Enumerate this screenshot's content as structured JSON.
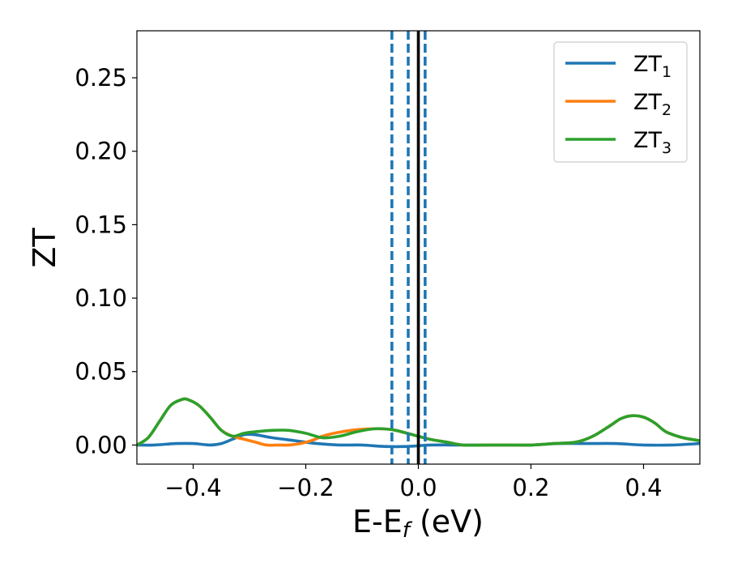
{
  "chart_data": {
    "type": "line",
    "xlabel": {
      "main": "E-E",
      "sub": "f",
      "unit": " (eV)"
    },
    "ylabel": "ZT",
    "xlim": [
      -0.5,
      0.5
    ],
    "ylim": [
      -0.013,
      0.282
    ],
    "xticks": [
      -0.4,
      -0.2,
      0.0,
      0.2,
      0.4
    ],
    "xtick_labels": [
      "−0.4",
      "−0.2",
      "0.0",
      "0.2",
      "0.4"
    ],
    "yticks": [
      0.0,
      0.05,
      0.1,
      0.15,
      0.2,
      0.25
    ],
    "ytick_labels": [
      "0.00",
      "0.05",
      "0.10",
      "0.15",
      "0.20",
      "0.25"
    ],
    "grid": false,
    "legend_position": "top-right",
    "series": [
      {
        "name": "ZT",
        "subscript": "1",
        "color": "#1f77b4",
        "x": [
          -0.5,
          -0.47,
          -0.43,
          -0.4,
          -0.37,
          -0.35,
          -0.33,
          -0.31,
          -0.29,
          -0.26,
          -0.22,
          -0.18,
          -0.14,
          -0.1,
          -0.06,
          -0.02,
          0.02,
          0.06,
          0.1,
          0.15,
          0.2,
          0.25,
          0.3,
          0.35,
          0.4,
          0.45,
          0.5
        ],
        "y": [
          0.0,
          0.0,
          0.001,
          0.001,
          0.0,
          0.001,
          0.004,
          0.007,
          0.007,
          0.005,
          0.003,
          0.001,
          0.0,
          0.0,
          -0.001,
          -0.001,
          0.0,
          0.0,
          0.0,
          0.0,
          0.0,
          0.001,
          0.001,
          0.001,
          0.0,
          0.0,
          0.001
        ]
      },
      {
        "name": "ZT",
        "subscript": "2",
        "color": "#ff7f0e",
        "x": [
          -0.5,
          -0.48,
          -0.46,
          -0.44,
          -0.42,
          -0.41,
          -0.39,
          -0.37,
          -0.35,
          -0.33,
          -0.31,
          -0.29,
          -0.27,
          -0.25,
          -0.23,
          -0.21,
          -0.19,
          -0.17,
          -0.15,
          -0.12,
          -0.09,
          -0.06,
          -0.04,
          -0.01,
          0.02,
          0.05,
          0.08,
          0.12,
          0.16,
          0.2,
          0.24,
          0.28,
          0.31,
          0.34,
          0.36,
          0.38,
          0.4,
          0.42,
          0.44,
          0.47,
          0.5
        ],
        "y": [
          0.0,
          0.005,
          0.016,
          0.027,
          0.031,
          0.031,
          0.027,
          0.019,
          0.01,
          0.006,
          0.004,
          0.002,
          0.0,
          0.0,
          0.0,
          0.001,
          0.003,
          0.006,
          0.008,
          0.01,
          0.011,
          0.011,
          0.01,
          0.007,
          0.004,
          0.002,
          0.0,
          0.0,
          0.0,
          0.0,
          0.001,
          0.002,
          0.006,
          0.013,
          0.018,
          0.02,
          0.019,
          0.015,
          0.009,
          0.005,
          0.003
        ]
      },
      {
        "name": "ZT",
        "subscript": "3",
        "color": "#2ca02c",
        "x": [
          -0.5,
          -0.48,
          -0.46,
          -0.44,
          -0.42,
          -0.41,
          -0.39,
          -0.37,
          -0.35,
          -0.33,
          -0.31,
          -0.29,
          -0.26,
          -0.23,
          -0.2,
          -0.17,
          -0.14,
          -0.11,
          -0.08,
          -0.06,
          -0.04,
          -0.01,
          0.02,
          0.05,
          0.08,
          0.12,
          0.16,
          0.2,
          0.24,
          0.28,
          0.31,
          0.34,
          0.36,
          0.38,
          0.4,
          0.42,
          0.44,
          0.47,
          0.5
        ],
        "y": [
          0.0,
          0.005,
          0.016,
          0.027,
          0.031,
          0.031,
          0.027,
          0.019,
          0.01,
          0.006,
          0.008,
          0.009,
          0.01,
          0.01,
          0.008,
          0.005,
          0.006,
          0.009,
          0.011,
          0.011,
          0.01,
          0.007,
          0.004,
          0.002,
          0.0,
          0.0,
          0.0,
          0.0,
          0.001,
          0.002,
          0.006,
          0.013,
          0.018,
          0.02,
          0.019,
          0.015,
          0.009,
          0.005,
          0.003
        ]
      }
    ],
    "vlines": [
      {
        "x": -0.047,
        "style": "dashed",
        "color": "#1f77b4"
      },
      {
        "x": -0.018,
        "style": "dashed",
        "color": "#1f77b4"
      },
      {
        "x": 0.0,
        "style": "solid",
        "color": "#000000"
      },
      {
        "x": 0.012,
        "style": "dashed",
        "color": "#1f77b4"
      }
    ]
  }
}
